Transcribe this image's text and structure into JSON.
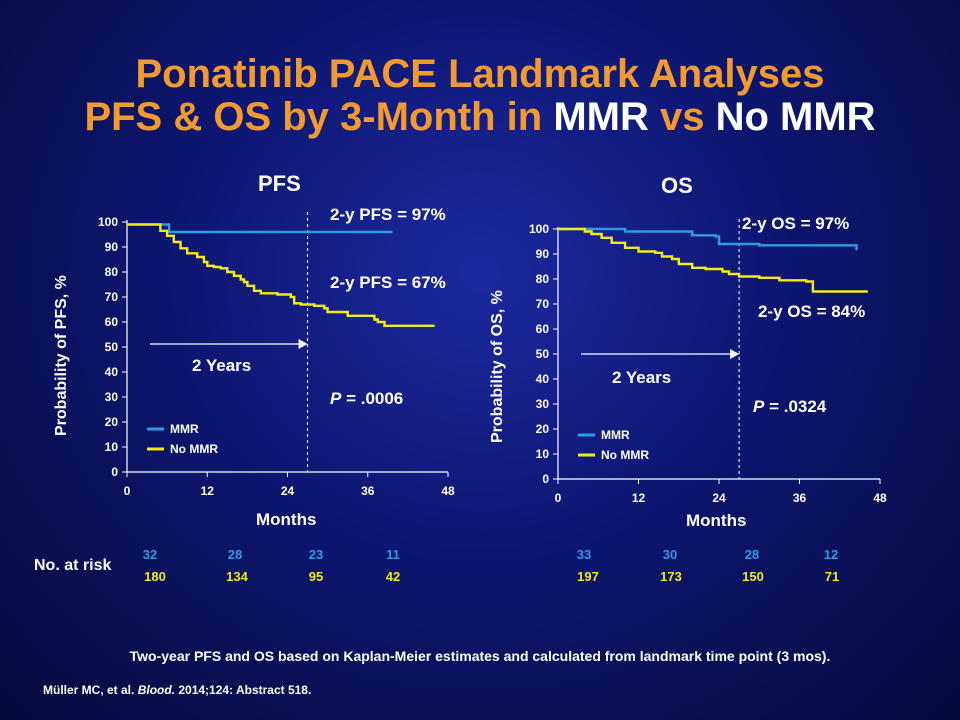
{
  "header": {
    "line1": "Ponatinib PACE Landmark Analyses",
    "line2_prefix": "PFS & OS by 3-Month in ",
    "line2_mmr": "MMR",
    "line2_vs": " vs ",
    "line2_nommr": "No MMR"
  },
  "colors": {
    "mmr": "#2f9be6",
    "no_mmr": "#f2ec12",
    "title": "#f29a2e",
    "background": "#0d1670"
  },
  "chart_data": [
    {
      "type": "line",
      "title": "PFS",
      "xlabel": "Months",
      "ylabel": "Probability  of PFS, %",
      "xlim": [
        0,
        48
      ],
      "ylim": [
        0,
        100
      ],
      "xticks": [
        0,
        12,
        24,
        36,
        48
      ],
      "yticks": [
        0,
        10,
        20,
        30,
        40,
        50,
        60,
        70,
        80,
        90,
        100
      ],
      "series": [
        {
          "name": "MMR",
          "color": "#2f9be6",
          "x": [
            0,
            3.5,
            6.3,
            6.3,
            20,
            39.5
          ],
          "y": [
            99,
            99,
            98,
            96,
            96,
            95.5
          ]
        },
        {
          "name": "No MMR",
          "color": "#f2ec12",
          "x": [
            0,
            3.5,
            5,
            6,
            7,
            8,
            9,
            10.5,
            11.5,
            12,
            13,
            14,
            15,
            16,
            17,
            17.5,
            18,
            19,
            20,
            21,
            22,
            22.5,
            24.5,
            25,
            26,
            27,
            28,
            29.5,
            30,
            32,
            33,
            36,
            37,
            37.5,
            38.5,
            46
          ],
          "y": [
            99,
            99,
            96.5,
            94.5,
            92,
            89.5,
            87.5,
            86,
            84,
            82.5,
            82,
            81.5,
            80,
            78.5,
            77,
            76,
            74.5,
            72.5,
            71.5,
            71.5,
            71.5,
            71,
            70,
            67.5,
            67,
            67,
            66.5,
            65.5,
            64,
            64,
            62.5,
            62.5,
            61,
            60,
            58.5,
            58.5
          ]
        }
      ],
      "legend": [
        "MMR",
        "No MMR"
      ],
      "legend_position": "bottom-left",
      "annotations": {
        "mmr_label": "2-y PFS = 97%",
        "nommr_label": "2-y PFS = 67%",
        "arrow_label": "2 Years",
        "p_label": "P",
        "p_value": " = .0006"
      },
      "landmark_x": 27,
      "at_risk": {
        "mmr": [
          "32",
          "28",
          "23",
          "11"
        ],
        "no_mmr": [
          "180",
          "134",
          "95",
          "42"
        ]
      }
    },
    {
      "type": "line",
      "title": "OS",
      "xlabel": "Months",
      "ylabel": "Probability  of OS, %",
      "xlim": [
        0,
        48
      ],
      "ylim": [
        0,
        100
      ],
      "xticks": [
        0,
        12,
        24,
        36,
        48
      ],
      "yticks": [
        0,
        10,
        20,
        30,
        40,
        50,
        60,
        70,
        80,
        90,
        100
      ],
      "series": [
        {
          "name": "MMR",
          "color": "#2f9be6",
          "x": [
            0,
            10,
            20,
            23.5,
            24,
            24,
            30,
            44.5
          ],
          "y": [
            100,
            99,
            97.5,
            97,
            95.5,
            94,
            93.5,
            91.5
          ]
        },
        {
          "name": "No MMR",
          "color": "#f2ec12",
          "x": [
            0,
            4,
            5,
            6.5,
            8,
            10,
            12,
            14.5,
            15.5,
            17,
            18,
            20,
            22,
            24.5,
            25.5,
            27,
            30,
            33,
            37,
            38,
            46
          ],
          "y": [
            100,
            99,
            98,
            96.5,
            94.5,
            92.5,
            91,
            90.5,
            89,
            88,
            86,
            84.5,
            84,
            83,
            82,
            81,
            80.5,
            79.5,
            79,
            75,
            74.5
          ]
        }
      ],
      "legend": [
        "MMR",
        "No MMR"
      ],
      "legend_position": "bottom-left",
      "annotations": {
        "mmr_label": "2-y OS = 97%",
        "nommr_label": "2-y OS = 84%",
        "arrow_label": "2 Years",
        "p_label": "P",
        "p_value": " = .0324"
      },
      "landmark_x": 27,
      "at_risk": {
        "mmr": [
          "33",
          "30",
          "28",
          "12"
        ],
        "no_mmr": [
          "197",
          "173",
          "150",
          "71"
        ]
      }
    }
  ],
  "risk_label": "No. at risk",
  "footnote": "Two-year PFS and OS based on Kaplan-Meier estimates and calculated from landmark time point (3 mos).",
  "citation": {
    "prefix": "Müller MC, et al. ",
    "journal": "Blood.",
    "suffix": "  2014;124: Abstract 518."
  }
}
